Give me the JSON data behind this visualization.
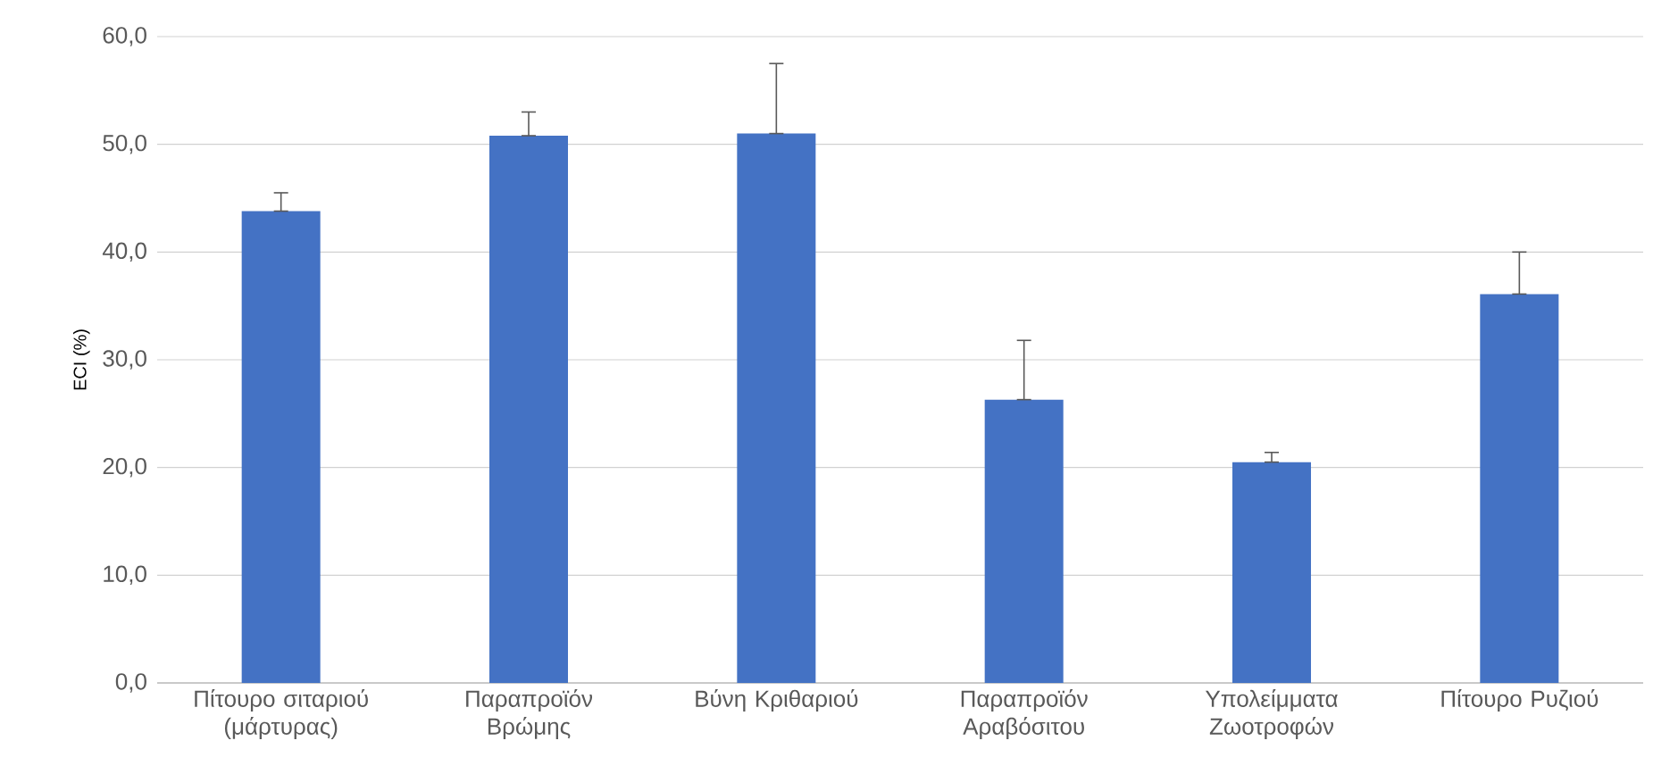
{
  "chart_data": {
    "type": "bar",
    "ylabel": "ECI (%)",
    "categories": [
      "Πίτουρο σιταριού (μάρτυρας)",
      "Παραπροϊόν Βρώμης",
      "Βύνη Κριθαριού",
      "Παραπροϊόν Αραβόσιτου",
      "Υπολείμματα Ζωοτροφών",
      "Πίτουρο Ρυζιού"
    ],
    "values": [
      43.8,
      50.8,
      51.0,
      26.3,
      20.5,
      36.1
    ],
    "errors": [
      [
        43.8,
        45.5
      ],
      [
        50.8,
        53.0
      ],
      [
        51.0,
        57.5
      ],
      [
        26.3,
        31.8
      ],
      [
        20.5,
        21.4
      ],
      [
        36.1,
        40.0
      ]
    ],
    "color": "#4472c4",
    "ylim": [
      0,
      60
    ],
    "yticks": [
      {
        "value": 0,
        "label": "0,0"
      },
      {
        "value": 10,
        "label": "10,0"
      },
      {
        "value": 20,
        "label": "20,0"
      },
      {
        "value": 30,
        "label": "30,0"
      },
      {
        "value": 40,
        "label": "40,0"
      },
      {
        "value": 50,
        "label": "50,0"
      },
      {
        "value": 60,
        "label": "60,0"
      }
    ],
    "grid": "y"
  }
}
